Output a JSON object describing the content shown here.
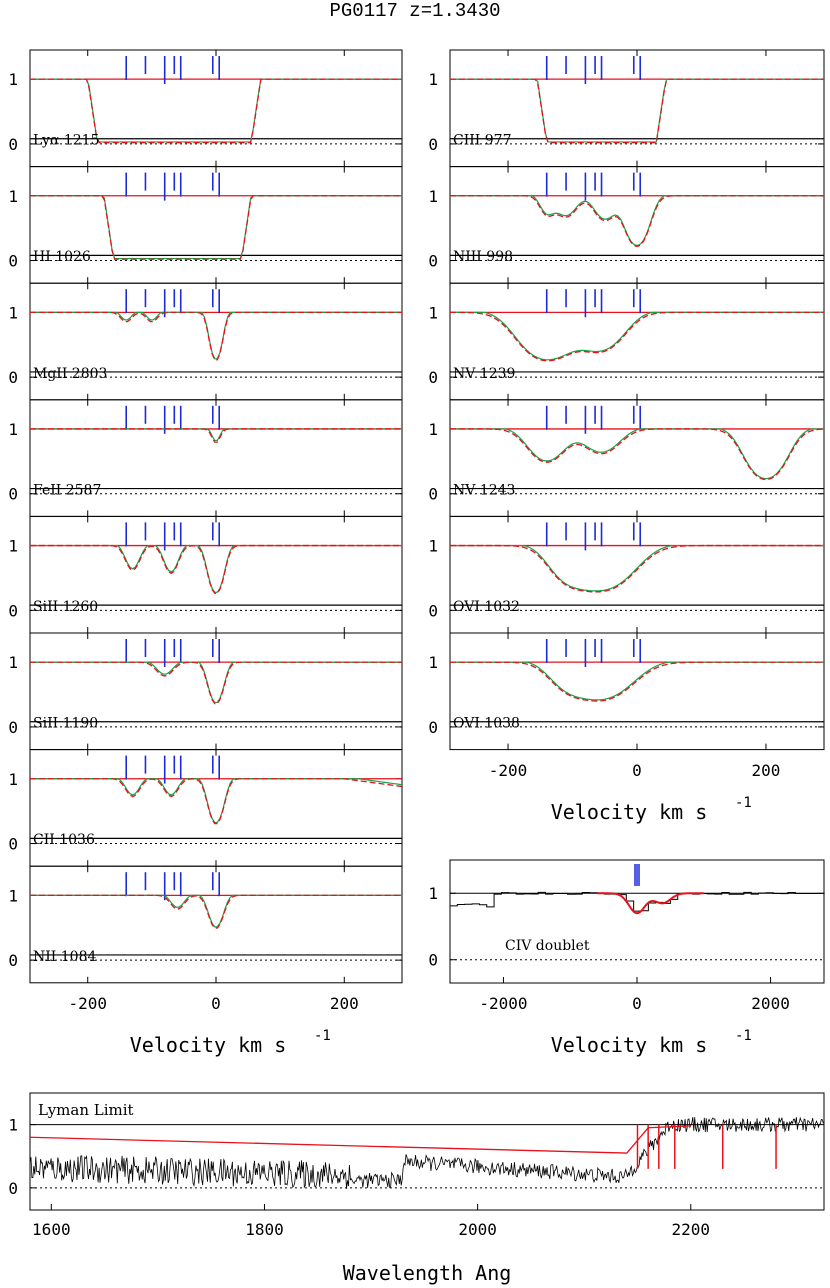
{
  "title": "PG0117   z=1.3430",
  "chart_data": {
    "type": "line",
    "object": "PG0117",
    "redshift": 1.343,
    "colors": {
      "data": "#000000",
      "model": "#e8111c",
      "components": "#e8111c",
      "total": "#1aa34a",
      "ticks": "#1d2bd8",
      "zero": "#000000"
    },
    "component_velocities_kms": [
      -140,
      -110,
      -80,
      -65,
      -55,
      -5,
      5
    ],
    "velocity_axis": {
      "xlabel": "Velocity  km  s",
      "exponent": "-1",
      "xlim": [
        -290,
        290
      ],
      "ticks": [
        -200,
        0,
        200
      ],
      "tick_labels": [
        "-200",
        "0",
        "200"
      ]
    },
    "y_ticks": [
      "0",
      "1"
    ],
    "left_column": [
      {
        "label": "Lyα  1215",
        "type": "saturated",
        "lo": -185,
        "hi": 55,
        "fit": "broad"
      },
      {
        "label": "HI  1026",
        "type": "saturated",
        "lo": -160,
        "hi": 40,
        "fit": "broad"
      },
      {
        "label": "MgII  2803",
        "type": "lines",
        "noise": 0.02,
        "lines": [
          [
            0,
            0.85,
            8
          ],
          [
            -140,
            0.1,
            8
          ],
          [
            -100,
            0.1,
            8
          ]
        ]
      },
      {
        "label": "FeII  2587",
        "type": "lines",
        "noise": 0.02,
        "lines": [
          [
            0,
            0.15,
            6
          ]
        ]
      },
      {
        "label": "SiII  1260",
        "type": "lines",
        "noise": 0.08,
        "lines": [
          [
            0,
            0.85,
            10
          ],
          [
            -70,
            0.35,
            10
          ],
          [
            -130,
            0.3,
            10
          ]
        ]
      },
      {
        "label": "SiII  1190",
        "type": "lines",
        "noise": 0.08,
        "lines": [
          [
            0,
            0.65,
            10
          ],
          [
            -80,
            0.15,
            12
          ]
        ]
      },
      {
        "label": "CII  1036",
        "type": "lines",
        "noise": 0.12,
        "lines": [
          [
            0,
            0.75,
            10
          ],
          [
            -70,
            0.2,
            10
          ],
          [
            -130,
            0.2,
            10
          ]
        ],
        "wing": true
      },
      {
        "label": "NII  1084",
        "type": "lines",
        "noise": 0.08,
        "lines": [
          [
            0,
            0.45,
            10
          ],
          [
            -60,
            0.15,
            10
          ]
        ],
        "spikes": [
          -185,
          110
        ]
      }
    ],
    "right_column": [
      {
        "label": "CIII  977",
        "type": "saturated",
        "lo": -140,
        "hi": 30,
        "fit": "multi"
      },
      {
        "label": "NIII  998",
        "type": "lines",
        "noise": 0.12,
        "lines": [
          [
            0,
            0.95,
            15
          ],
          [
            -110,
            0.25,
            15
          ],
          [
            -50,
            0.3,
            15
          ],
          [
            -140,
            0.2,
            10
          ]
        ]
      },
      {
        "label": "NV  1239",
        "type": "lines",
        "noise": 0.12,
        "lines": [
          [
            -140,
            0.85,
            35
          ],
          [
            -55,
            0.55,
            30
          ]
        ]
      },
      {
        "label": "NV  1243",
        "type": "lines",
        "noise": 0.05,
        "lines": [
          [
            -140,
            0.45,
            25
          ],
          [
            -55,
            0.3,
            25
          ],
          [
            200,
            0.95,
            25
          ]
        ]
      },
      {
        "label": "OVI  1032",
        "type": "lines",
        "noise": 0.12,
        "lines": [
          [
            -55,
            0.75,
            40
          ],
          [
            -110,
            0.3,
            25
          ]
        ]
      },
      {
        "label": "OVI  1038",
        "type": "lines",
        "noise": 0.1,
        "lines": [
          [
            -55,
            0.55,
            40
          ],
          [
            -110,
            0.2,
            25
          ]
        ]
      }
    ],
    "civ_panel": {
      "label": "CIV  doublet",
      "xlim": [
        -2800,
        2800
      ],
      "ticks": [
        -2000,
        0,
        2000
      ],
      "tick_labels": [
        "-2000",
        "0",
        "2000"
      ],
      "xlabel": "Velocity  km  s",
      "exponent": "-1",
      "absorption": [
        [
          0,
          0.3,
          120
        ],
        [
          380,
          0.15,
          120
        ]
      ]
    },
    "lyman_panel": {
      "label": "Lyman Limit",
      "xlim": [
        1580,
        2325
      ],
      "ticks": [
        1600,
        1800,
        2000,
        2200
      ],
      "tick_labels": [
        "1600",
        "1800",
        "2000",
        "2200"
      ],
      "xlabel": "Wavelength  Ang",
      "model_start": 0.8,
      "model_drop": 0.55,
      "edge": 2140
    }
  }
}
